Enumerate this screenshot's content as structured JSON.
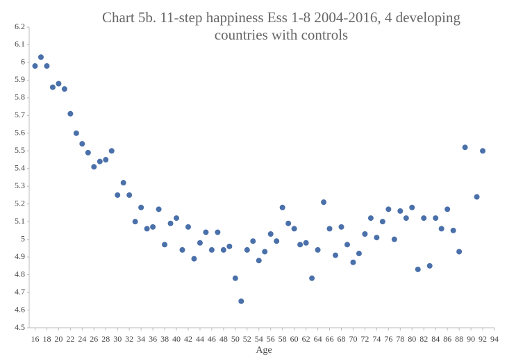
{
  "chart_data": {
    "type": "scatter",
    "title": [
      "Chart 5b. 11-step happiness Ess 1-8 2004-2016, 4 developing",
      "countries with controls"
    ],
    "x_label": "Age",
    "x": [
      16,
      17,
      18,
      19,
      20,
      21,
      22,
      23,
      24,
      25,
      26,
      27,
      28,
      29,
      30,
      31,
      32,
      33,
      34,
      35,
      36,
      37,
      38,
      39,
      40,
      41,
      42,
      43,
      44,
      45,
      46,
      47,
      48,
      49,
      50,
      51,
      52,
      53,
      54,
      55,
      56,
      57,
      58,
      59,
      60,
      61,
      62,
      63,
      64,
      65,
      66,
      67,
      68,
      69,
      70,
      71,
      72,
      73,
      74,
      75,
      76,
      77,
      78,
      79,
      80,
      81,
      82,
      83,
      84,
      85,
      86,
      87,
      88,
      89,
      91,
      92
    ],
    "values": [
      5.98,
      6.03,
      5.98,
      5.86,
      5.88,
      5.85,
      5.71,
      5.6,
      5.54,
      5.49,
      5.41,
      5.44,
      5.45,
      5.5,
      5.25,
      5.32,
      5.25,
      5.1,
      5.18,
      5.06,
      5.07,
      5.17,
      4.97,
      5.09,
      5.12,
      4.94,
      5.07,
      4.89,
      4.98,
      5.04,
      4.94,
      5.04,
      4.94,
      4.96,
      4.78,
      4.65,
      4.94,
      4.99,
      4.88,
      4.93,
      5.03,
      4.99,
      5.18,
      5.09,
      5.06,
      4.97,
      4.98,
      4.78,
      4.94,
      5.21,
      5.06,
      4.91,
      5.07,
      4.97,
      4.87,
      4.92,
      5.03,
      5.12,
      5.01,
      5.1,
      5.17,
      5.0,
      5.16,
      5.12,
      5.18,
      4.83,
      5.12,
      4.85,
      5.12,
      5.06,
      5.17,
      5.05,
      4.93,
      5.52,
      5.24,
      5.5
    ],
    "color": "#4a70aa",
    "xlim": [
      15,
      94
    ],
    "xticks": [
      16,
      18,
      20,
      22,
      24,
      26,
      28,
      30,
      32,
      34,
      36,
      38,
      40,
      42,
      44,
      46,
      48,
      50,
      52,
      54,
      56,
      58,
      60,
      62,
      64,
      66,
      68,
      70,
      72,
      74,
      76,
      78,
      80,
      82,
      84,
      86,
      88,
      90,
      92,
      94
    ],
    "ylim": [
      4.5,
      6.2
    ],
    "yticks": [
      4.5,
      4.6,
      4.7,
      4.8,
      4.9,
      5,
      5.1,
      5.2,
      5.3,
      5.4,
      5.5,
      5.6,
      5.7,
      5.8,
      5.9,
      6,
      6.1,
      6.2
    ],
    "grid": false
  }
}
